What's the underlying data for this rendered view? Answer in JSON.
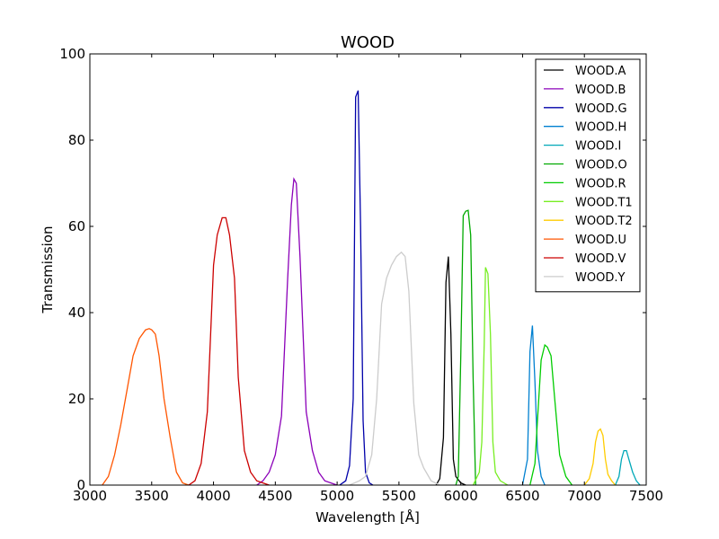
{
  "chart_data": {
    "type": "line",
    "title": "WOOD",
    "xlabel": "Wavelength [Å]",
    "ylabel": "Transmission",
    "xlim": [
      3000,
      7500
    ],
    "ylim": [
      0,
      100
    ],
    "xticks": [
      3000,
      3500,
      4000,
      4500,
      5000,
      5500,
      6000,
      6500,
      7000,
      7500
    ],
    "yticks": [
      0,
      20,
      40,
      60,
      80,
      100
    ],
    "grid": false,
    "legend_position": "top-right",
    "series": [
      {
        "name": "WOOD.A",
        "color": "#000000",
        "x": [
          5800,
          5830,
          5860,
          5880,
          5900,
          5920,
          5940,
          5960,
          6000,
          6040
        ],
        "y": [
          0,
          1.5,
          11,
          47,
          53,
          35,
          6,
          2,
          0.5,
          0
        ]
      },
      {
        "name": "WOOD.B",
        "color": "#8b00b8",
        "x": [
          4350,
          4400,
          4450,
          4500,
          4550,
          4600,
          4630,
          4650,
          4670,
          4700,
          4750,
          4800,
          4850,
          4900,
          4950,
          5000
        ],
        "y": [
          0,
          1,
          3,
          7,
          16,
          48,
          65,
          71,
          70,
          53,
          17,
          8,
          3,
          1,
          0.5,
          0
        ]
      },
      {
        "name": "WOOD.G",
        "color": "#0000aa",
        "x": [
          5020,
          5070,
          5100,
          5130,
          5150,
          5170,
          5190,
          5210,
          5230,
          5260,
          5290
        ],
        "y": [
          0,
          1,
          4.5,
          20,
          90,
          91.5,
          60,
          15,
          3,
          0.5,
          0
        ]
      },
      {
        "name": "WOOD.H",
        "color": "#0080d0",
        "x": [
          6500,
          6540,
          6560,
          6580,
          6600,
          6620,
          6650,
          6680
        ],
        "y": [
          0,
          6,
          31,
          37,
          24,
          8,
          2,
          0
        ]
      },
      {
        "name": "WOOD.I",
        "color": "#00a8b8",
        "x": [
          7250,
          7280,
          7300,
          7320,
          7340,
          7360,
          7390,
          7420,
          7450
        ],
        "y": [
          0,
          2,
          6,
          8,
          8,
          6,
          3,
          1,
          0
        ]
      },
      {
        "name": "WOOD.O",
        "color": "#00aa00",
        "x": [
          5960,
          5980,
          6000,
          6020,
          6040,
          6060,
          6080,
          6100,
          6120
        ],
        "y": [
          0,
          2,
          30,
          62.5,
          63.5,
          63.7,
          58,
          25,
          0
        ]
      },
      {
        "name": "WOOD.R",
        "color": "#00cc00",
        "x": [
          6560,
          6600,
          6620,
          6650,
          6680,
          6700,
          6730,
          6760,
          6800,
          6850,
          6900
        ],
        "y": [
          0,
          5,
          15,
          29,
          32.5,
          32,
          30,
          20,
          7,
          2,
          0
        ]
      },
      {
        "name": "WOOD.T1",
        "color": "#77ee22",
        "x": [
          6100,
          6150,
          6170,
          6190,
          6200,
          6220,
          6240,
          6260,
          6280,
          6320,
          6380
        ],
        "y": [
          0,
          3,
          10,
          33,
          50.5,
          49,
          35,
          10,
          3,
          1,
          0
        ]
      },
      {
        "name": "WOOD.T2",
        "color": "#ffcc00",
        "x": [
          7000,
          7040,
          7070,
          7090,
          7110,
          7130,
          7150,
          7170,
          7190,
          7220,
          7250
        ],
        "y": [
          0,
          1.5,
          5,
          10,
          12.5,
          13,
          11.5,
          6,
          2.5,
          1,
          0
        ]
      },
      {
        "name": "WOOD.U",
        "color": "#ff5500",
        "x": [
          3100,
          3150,
          3200,
          3250,
          3300,
          3350,
          3400,
          3450,
          3480,
          3500,
          3530,
          3560,
          3600,
          3650,
          3700,
          3750,
          3800
        ],
        "y": [
          0,
          2,
          7,
          14,
          22,
          30,
          34,
          36,
          36.3,
          36,
          35,
          30,
          20,
          11,
          3,
          0.5,
          0
        ]
      },
      {
        "name": "WOOD.V",
        "color": "#cc0000",
        "x": [
          3800,
          3850,
          3900,
          3950,
          4000,
          4030,
          4070,
          4100,
          4130,
          4170,
          4200,
          4250,
          4300,
          4350,
          4400,
          4450
        ],
        "y": [
          0,
          1,
          5,
          17,
          51,
          58,
          62,
          62,
          58,
          48,
          25,
          8,
          3,
          1,
          0.5,
          0
        ]
      },
      {
        "name": "WOOD.Y",
        "color": "#cccccc",
        "x": [
          5100,
          5180,
          5230,
          5280,
          5320,
          5360,
          5400,
          5440,
          5480,
          5520,
          5550,
          5580,
          5620,
          5660,
          5700,
          5760,
          5830
        ],
        "y": [
          0,
          1,
          2,
          7,
          20,
          42,
          48,
          51,
          53,
          54,
          53,
          45,
          19,
          7,
          4,
          1,
          0
        ]
      }
    ]
  }
}
